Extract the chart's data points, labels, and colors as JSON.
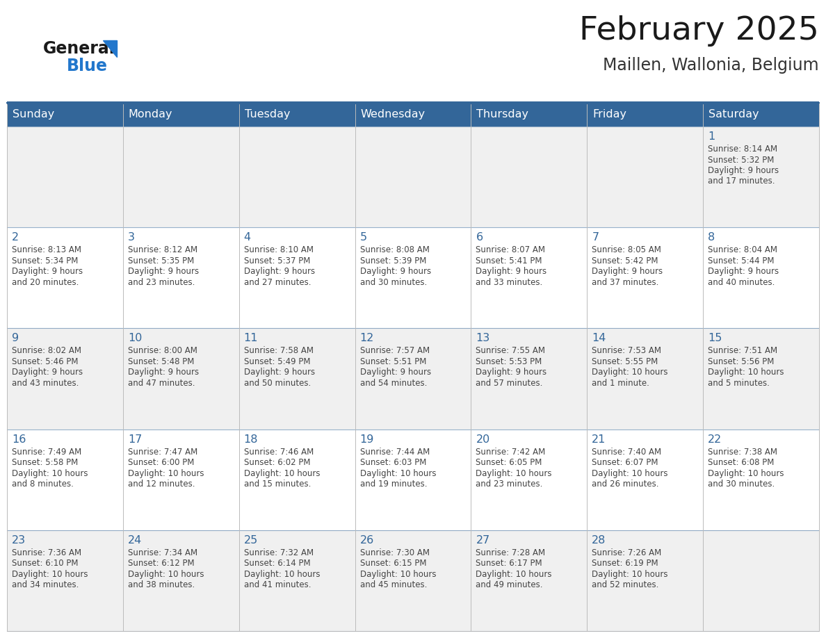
{
  "title": "February 2025",
  "subtitle": "Maillen, Wallonia, Belgium",
  "days_of_week": [
    "Sunday",
    "Monday",
    "Tuesday",
    "Wednesday",
    "Thursday",
    "Friday",
    "Saturday"
  ],
  "header_bg": "#336699",
  "header_text": "#FFFFFF",
  "cell_bg_light": "#F0F0F0",
  "cell_bg_white": "#FFFFFF",
  "day_number_color": "#336699",
  "info_text_color": "#444444",
  "border_color": "#BBBBBB",
  "grid_line_color": "#336699",
  "title_color": "#1a1a1a",
  "subtitle_color": "#333333",
  "logo_general_color": "#1a1a1a",
  "logo_blue_color": "#2277CC",
  "header_separator_color": "#336699",
  "calendar_data": [
    [
      null,
      null,
      null,
      null,
      null,
      null,
      {
        "day": 1,
        "sunrise": "8:14 AM",
        "sunset": "5:32 PM",
        "daylight": "9 hours and 17 minutes."
      }
    ],
    [
      {
        "day": 2,
        "sunrise": "8:13 AM",
        "sunset": "5:34 PM",
        "daylight": "9 hours and 20 minutes."
      },
      {
        "day": 3,
        "sunrise": "8:12 AM",
        "sunset": "5:35 PM",
        "daylight": "9 hours and 23 minutes."
      },
      {
        "day": 4,
        "sunrise": "8:10 AM",
        "sunset": "5:37 PM",
        "daylight": "9 hours and 27 minutes."
      },
      {
        "day": 5,
        "sunrise": "8:08 AM",
        "sunset": "5:39 PM",
        "daylight": "9 hours and 30 minutes."
      },
      {
        "day": 6,
        "sunrise": "8:07 AM",
        "sunset": "5:41 PM",
        "daylight": "9 hours and 33 minutes."
      },
      {
        "day": 7,
        "sunrise": "8:05 AM",
        "sunset": "5:42 PM",
        "daylight": "9 hours and 37 minutes."
      },
      {
        "day": 8,
        "sunrise": "8:04 AM",
        "sunset": "5:44 PM",
        "daylight": "9 hours and 40 minutes."
      }
    ],
    [
      {
        "day": 9,
        "sunrise": "8:02 AM",
        "sunset": "5:46 PM",
        "daylight": "9 hours and 43 minutes."
      },
      {
        "day": 10,
        "sunrise": "8:00 AM",
        "sunset": "5:48 PM",
        "daylight": "9 hours and 47 minutes."
      },
      {
        "day": 11,
        "sunrise": "7:58 AM",
        "sunset": "5:49 PM",
        "daylight": "9 hours and 50 minutes."
      },
      {
        "day": 12,
        "sunrise": "7:57 AM",
        "sunset": "5:51 PM",
        "daylight": "9 hours and 54 minutes."
      },
      {
        "day": 13,
        "sunrise": "7:55 AM",
        "sunset": "5:53 PM",
        "daylight": "9 hours and 57 minutes."
      },
      {
        "day": 14,
        "sunrise": "7:53 AM",
        "sunset": "5:55 PM",
        "daylight": "10 hours and 1 minute."
      },
      {
        "day": 15,
        "sunrise": "7:51 AM",
        "sunset": "5:56 PM",
        "daylight": "10 hours and 5 minutes."
      }
    ],
    [
      {
        "day": 16,
        "sunrise": "7:49 AM",
        "sunset": "5:58 PM",
        "daylight": "10 hours and 8 minutes."
      },
      {
        "day": 17,
        "sunrise": "7:47 AM",
        "sunset": "6:00 PM",
        "daylight": "10 hours and 12 minutes."
      },
      {
        "day": 18,
        "sunrise": "7:46 AM",
        "sunset": "6:02 PM",
        "daylight": "10 hours and 15 minutes."
      },
      {
        "day": 19,
        "sunrise": "7:44 AM",
        "sunset": "6:03 PM",
        "daylight": "10 hours and 19 minutes."
      },
      {
        "day": 20,
        "sunrise": "7:42 AM",
        "sunset": "6:05 PM",
        "daylight": "10 hours and 23 minutes."
      },
      {
        "day": 21,
        "sunrise": "7:40 AM",
        "sunset": "6:07 PM",
        "daylight": "10 hours and 26 minutes."
      },
      {
        "day": 22,
        "sunrise": "7:38 AM",
        "sunset": "6:08 PM",
        "daylight": "10 hours and 30 minutes."
      }
    ],
    [
      {
        "day": 23,
        "sunrise": "7:36 AM",
        "sunset": "6:10 PM",
        "daylight": "10 hours and 34 minutes."
      },
      {
        "day": 24,
        "sunrise": "7:34 AM",
        "sunset": "6:12 PM",
        "daylight": "10 hours and 38 minutes."
      },
      {
        "day": 25,
        "sunrise": "7:32 AM",
        "sunset": "6:14 PM",
        "daylight": "10 hours and 41 minutes."
      },
      {
        "day": 26,
        "sunrise": "7:30 AM",
        "sunset": "6:15 PM",
        "daylight": "10 hours and 45 minutes."
      },
      {
        "day": 27,
        "sunrise": "7:28 AM",
        "sunset": "6:17 PM",
        "daylight": "10 hours and 49 minutes."
      },
      {
        "day": 28,
        "sunrise": "7:26 AM",
        "sunset": "6:19 PM",
        "daylight": "10 hours and 52 minutes."
      },
      null
    ]
  ]
}
